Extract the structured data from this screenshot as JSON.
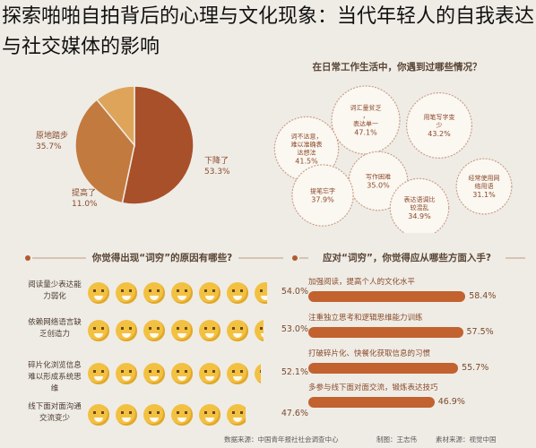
{
  "title": "探索啪啪自拍背后的心理与文化现象：当代年轻人的自我表达与社交媒体的影响",
  "sections": {
    "top_right": "在日常工作生活中，你遇到过哪些情况？",
    "bottom_left": "你觉得出现“词穷”的原因有哪些?",
    "bottom_right": "应对“词穷”，你觉得应从哪些方面入手?"
  },
  "chart_data": [
    {
      "type": "pie",
      "slices": [
        {
          "label": "下降了",
          "value": 53.3,
          "value_label": "53.3%",
          "color": "#a8502a"
        },
        {
          "label": "原地踏步",
          "value": 35.7,
          "value_label": "35.7%",
          "color": "#c27a3f"
        },
        {
          "label": "提高了",
          "value": 11.0,
          "value_label": "11.0%",
          "color": "#dea55a"
        }
      ]
    },
    {
      "type": "scatter",
      "subtype": "bubble",
      "items": [
        {
          "label": "词汇量贫乏，表达单一",
          "value": 47.1,
          "value_label": "47.1%"
        },
        {
          "label": "用笔写字变少",
          "value": 43.2,
          "value_label": "43.2%"
        },
        {
          "label": "词不达意，难以准确表达想法",
          "value": 41.5,
          "value_label": "41.5%"
        },
        {
          "label": "写作困难",
          "value": 35.0,
          "value_label": "35.0%"
        },
        {
          "label": "经常使用网络用语",
          "value": 31.1,
          "value_label": "31.1%"
        },
        {
          "label": "提笔忘字",
          "value": 37.9,
          "value_label": "37.9%"
        },
        {
          "label": "表达语调比较混乱",
          "value": 34.9,
          "value_label": "34.9%"
        }
      ]
    },
    {
      "type": "bar",
      "subtype": "pictogram",
      "categories": [
        "阅读量少表达能力弱化",
        "依赖网络语言缺乏创造力",
        "碎片化浏览信息难以形成系统思维",
        "线下面对面沟通交流变少"
      ],
      "values": [
        54.0,
        53.0,
        52.1,
        47.6
      ],
      "value_labels": [
        "54.0%",
        "53.0%",
        "52.1%",
        "47.6%"
      ],
      "xlim": [
        0,
        100
      ]
    },
    {
      "type": "bar",
      "categories": [
        "加强阅读，提高个人的文化水平",
        "注重独立思考和逻辑思维能力训练",
        "打破碎片化、快餐化获取信息的习惯",
        "多参与线下面对面交流，锻炼表达技巧"
      ],
      "values": [
        58.4,
        57.5,
        55.7,
        46.9
      ],
      "value_labels": [
        "58.4%",
        "57.5%",
        "55.7%",
        "46.9%"
      ],
      "xlim": [
        0,
        60
      ]
    }
  ],
  "footer": {
    "data_source": "数据来源：中国青年报社社会调查中心",
    "designer": "制图：王志伟",
    "material": "素材来源：视觉中国"
  },
  "colors": {
    "background": "#efece6",
    "accent": "#c1622f",
    "bubble_fill": "#fbf7f1",
    "bubble_stroke": "#c9a08a",
    "face": "#f3c142"
  }
}
